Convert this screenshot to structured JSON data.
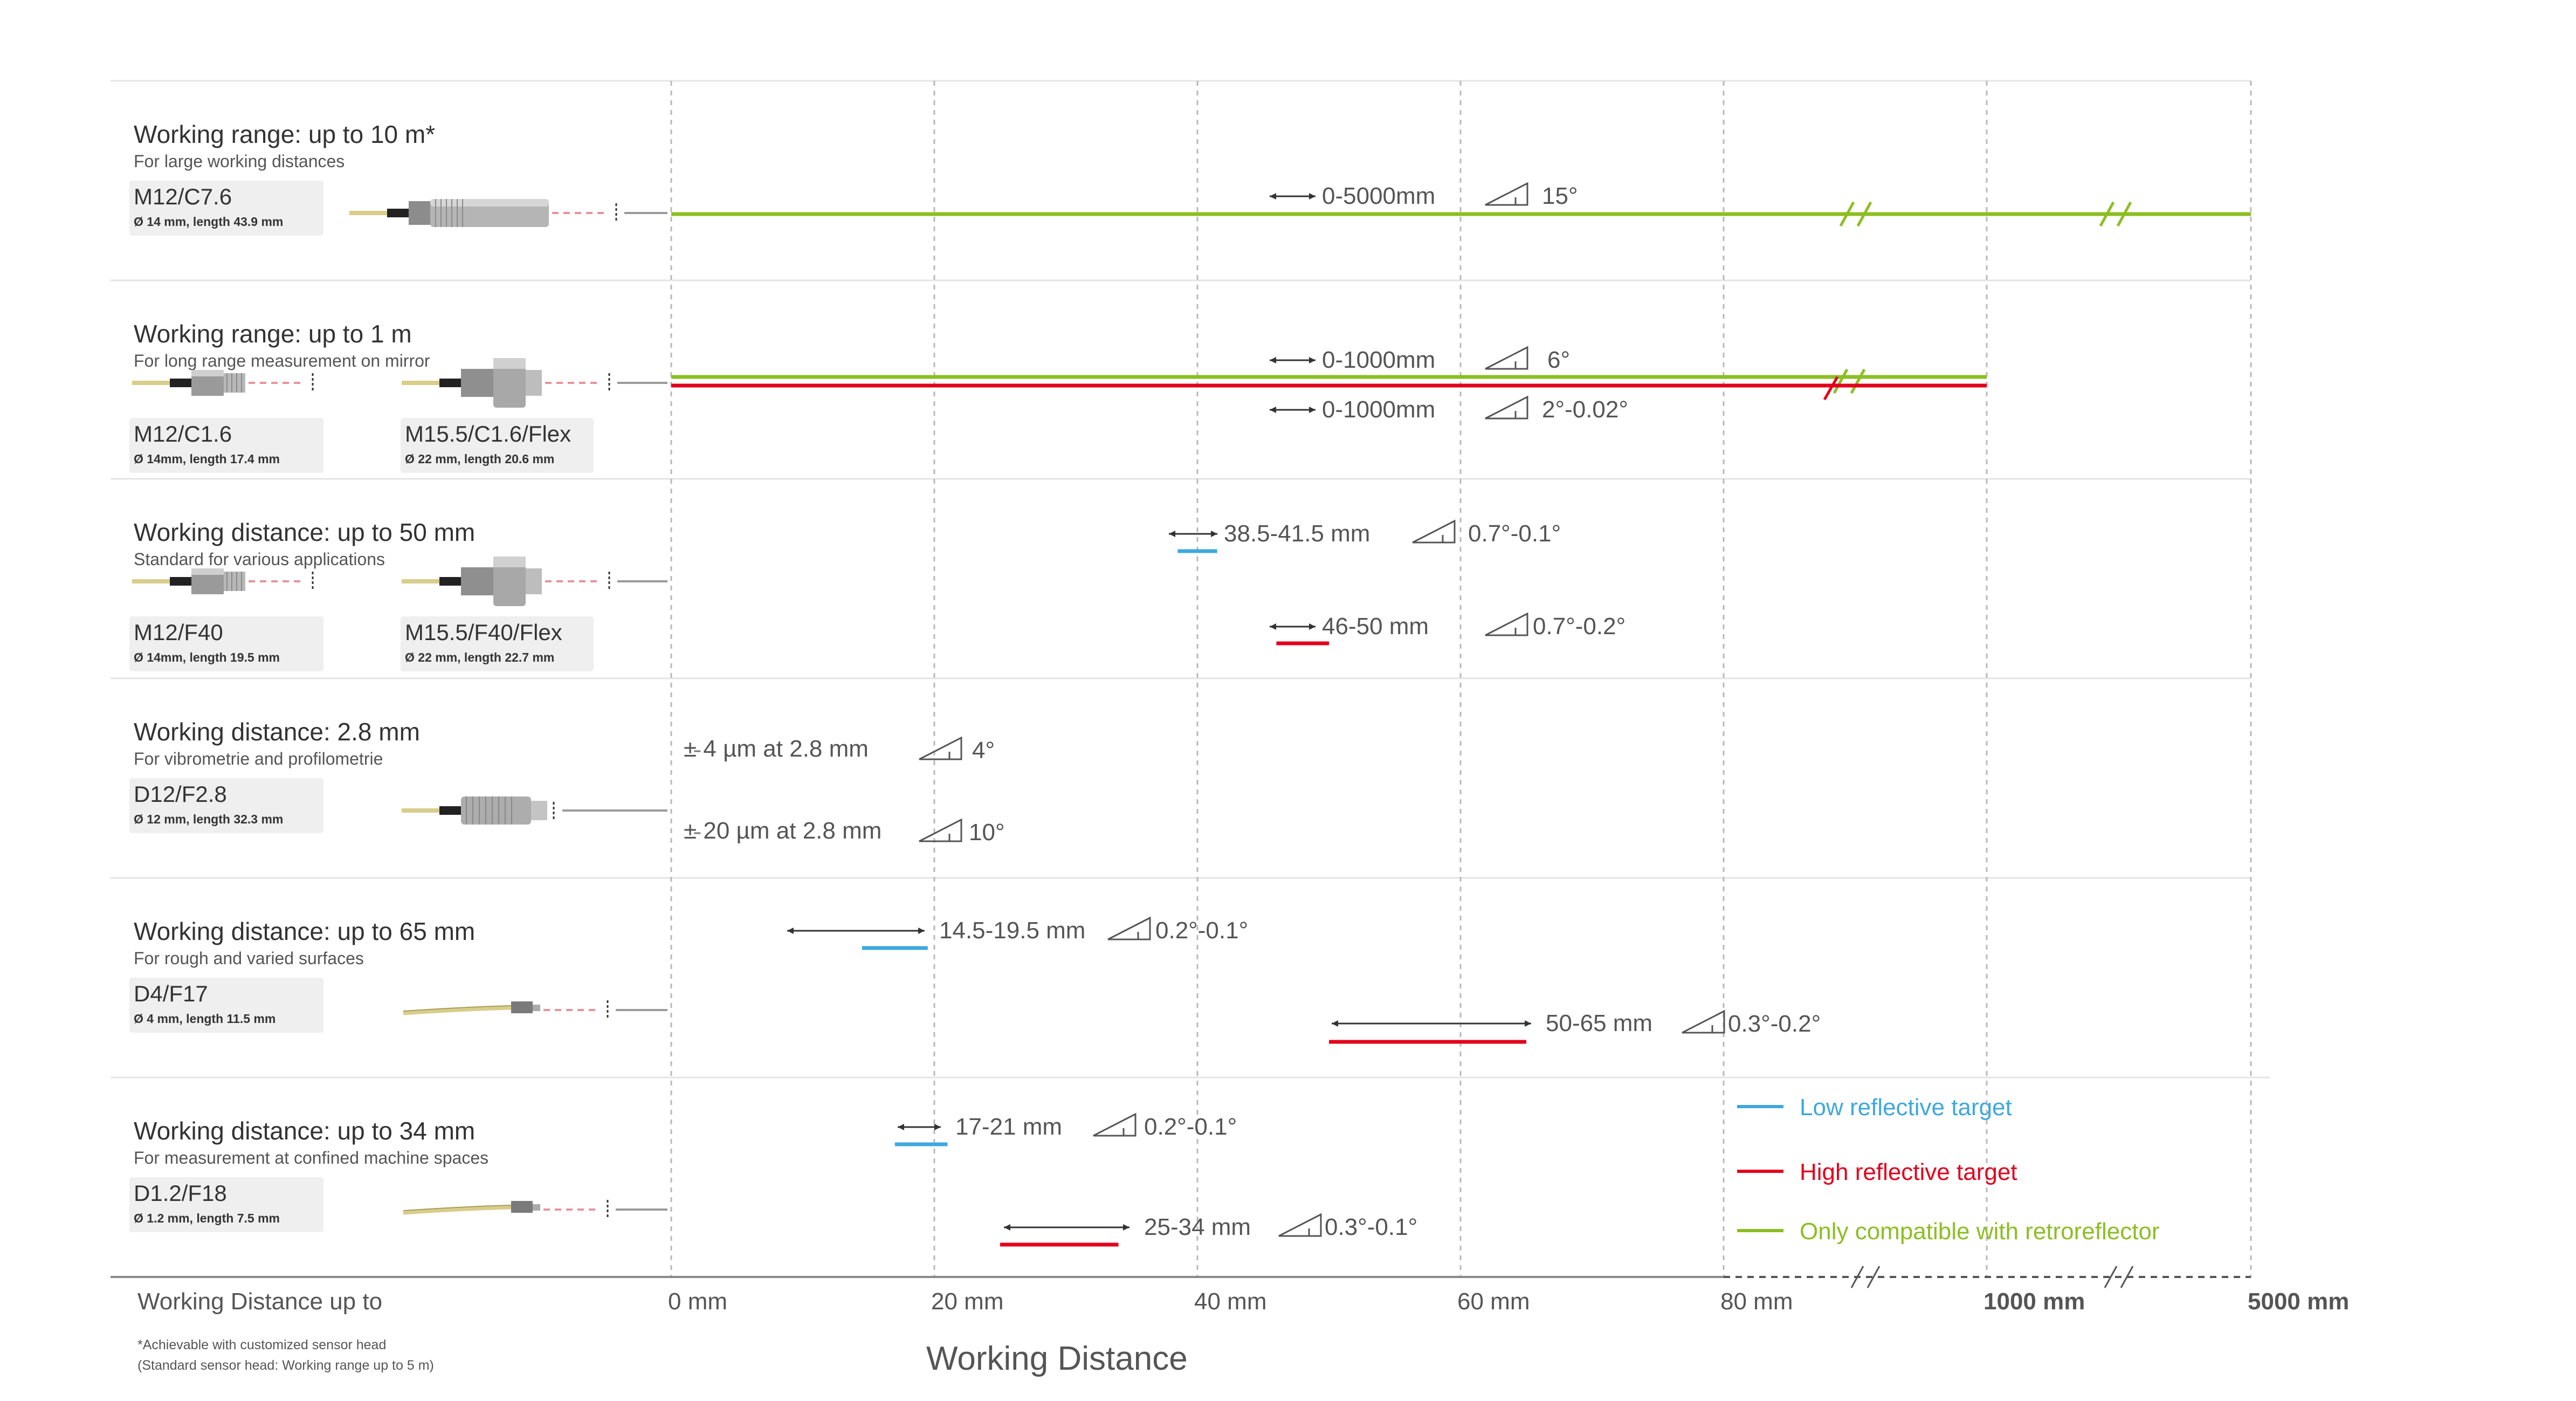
{
  "colors": {
    "low": "#3ea8dd",
    "high": "#e3001b",
    "retro": "#8cbe22",
    "grey": "#555555"
  },
  "rows": [
    {
      "title": "Working range: up to 10 m*",
      "subtitle": "For large working distances",
      "sensors": [
        {
          "name": "M12/C7.6",
          "dims": "Ø 14 mm, length 43.9 mm",
          "type": "long"
        }
      ]
    },
    {
      "title": "Working range: up to 1 m",
      "subtitle": "For long range measurement on mirror",
      "sensors": [
        {
          "name": "M12/C1.6",
          "dims": "Ø 14mm, length 17.4 mm",
          "type": "small"
        },
        {
          "name": "M15.5/C1.6/Flex",
          "dims": "Ø 22 mm, length 20.6 mm",
          "type": "nut"
        }
      ]
    },
    {
      "title": "Working distance: up to 50 mm",
      "subtitle": "Standard for various applications",
      "sensors": [
        {
          "name": "M12/F40",
          "dims": "Ø 14mm, length 19.5 mm",
          "type": "small"
        },
        {
          "name": "M15.5/F40/Flex",
          "dims": "Ø 22 mm, length 22.7 mm",
          "type": "nut"
        }
      ]
    },
    {
      "title": "Working distance: 2.8 mm",
      "subtitle": "For vibrometrie and profilometrie",
      "sensors": [
        {
          "name": "D12/F2.8",
          "dims": "Ø 12 mm, length 32.3 mm",
          "type": "d12"
        }
      ]
    },
    {
      "title": "Working distance: up to 65 mm",
      "subtitle": "For rough and varied surfaces",
      "sensors": [
        {
          "name": "D4/F17",
          "dims": "Ø 4 mm, length 11.5 mm",
          "type": "thin"
        }
      ]
    },
    {
      "title": "Working distance: up to 34 mm",
      "subtitle": "For measurement at confined machine spaces",
      "sensors": [
        {
          "name": "D1.2/F18",
          "dims": "Ø 1.2 mm, length 7.5 mm",
          "type": "thin"
        }
      ]
    }
  ],
  "chart_data": {
    "type": "range-bar",
    "xlabel": "Working Distance",
    "xlabel_left": "Working Distance up to",
    "axis_ticks": [
      {
        "label": "0 mm",
        "value": 0
      },
      {
        "label": "20 mm",
        "value": 20
      },
      {
        "label": "40 mm",
        "value": 40
      },
      {
        "label": "60 mm",
        "value": 60
      },
      {
        "label": "80 mm",
        "value": 80
      },
      {
        "label": "1000 mm",
        "value": 1000
      },
      {
        "label": "5000 mm",
        "value": 5000
      }
    ],
    "axis_breaks": [
      "80-1000 mm",
      "1000-5000 mm"
    ],
    "grid": true,
    "legend_position": "bottom-right",
    "series": [
      {
        "key": "low",
        "name": "Low reflective target"
      },
      {
        "key": "high",
        "name": "High reflective target"
      },
      {
        "key": "retro",
        "name": "Only compatible with retroreflector"
      }
    ],
    "bars": [
      {
        "row": 0,
        "kind": "retro",
        "range": [
          0,
          5000
        ],
        "label": "0-5000mm",
        "angle": "15°"
      },
      {
        "row": 1,
        "kind": "retro",
        "range": [
          0,
          1000
        ],
        "label": "0-1000mm",
        "angle": "6°"
      },
      {
        "row": 1,
        "kind": "high",
        "range": [
          0,
          1000
        ],
        "label": "0-1000mm",
        "angle": "2°-0.02°"
      },
      {
        "row": 2,
        "kind": "low",
        "range": [
          38.5,
          41.5
        ],
        "label": "38.5-41.5 mm",
        "angle": "0.7°-0.1°"
      },
      {
        "row": 2,
        "kind": "high",
        "range": [
          46,
          50
        ],
        "label": "46-50 mm",
        "angle": "0.7°-0.2°"
      },
      {
        "row": 3,
        "kind": "point",
        "value": 2.8,
        "label": "± 4 µm at 2.8 mm",
        "angle": "4°"
      },
      {
        "row": 3,
        "kind": "point",
        "value": 2.8,
        "label": "± 20 µm at 2.8 mm",
        "angle": "10°"
      },
      {
        "row": 4,
        "kind": "low",
        "range": [
          14.5,
          19.5
        ],
        "label": "14.5-19.5 mm",
        "angle": "0.2°-0.1°"
      },
      {
        "row": 4,
        "kind": "high",
        "range": [
          50,
          65
        ],
        "label": "50-65 mm",
        "angle": "0.3°-0.2°"
      },
      {
        "row": 5,
        "kind": "low",
        "range": [
          17,
          21
        ],
        "label": "17-21 mm",
        "angle": "0.2°-0.1°"
      },
      {
        "row": 5,
        "kind": "high",
        "range": [
          25,
          34
        ],
        "label": "25-34 mm",
        "angle": "0.3°-0.1°"
      }
    ]
  },
  "footnote": {
    "line1": "*Achievable with customized sensor head",
    "line2": "(Standard sensor head: Working range up to 5 m)"
  }
}
